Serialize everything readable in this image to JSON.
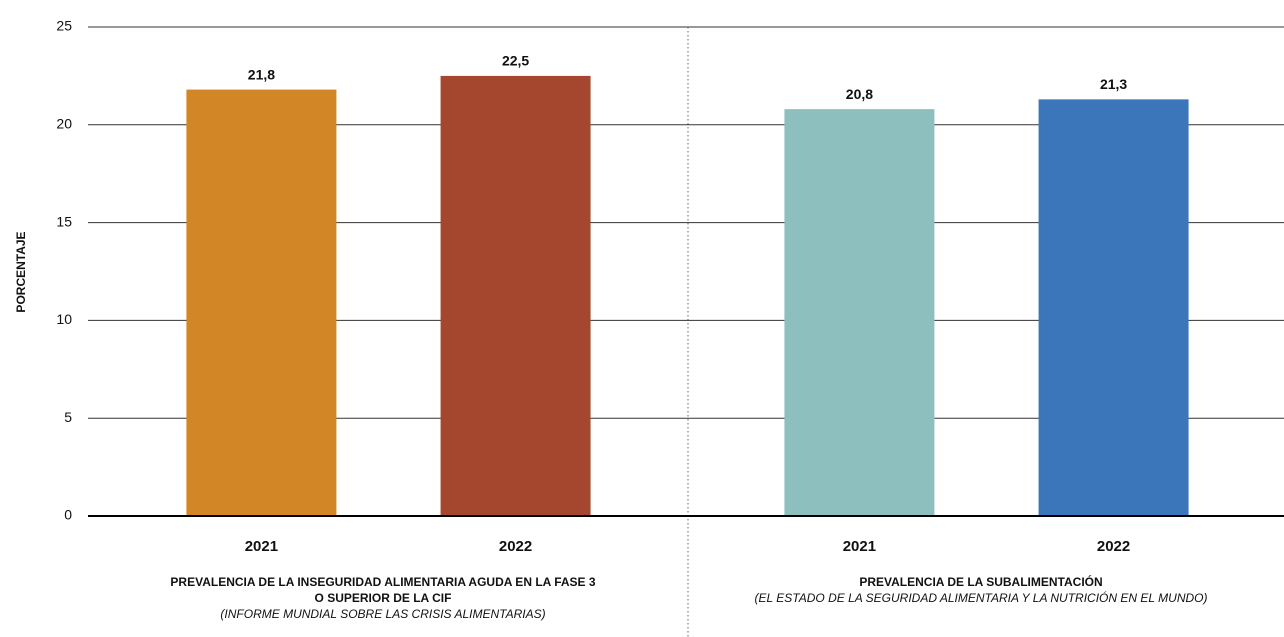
{
  "chart_data": {
    "type": "bar",
    "y_label": "PORCENTAJE",
    "ylim": [
      0,
      25
    ],
    "yticks": [
      0,
      5,
      10,
      15,
      20,
      25
    ],
    "grid": true,
    "groups": [
      {
        "title": [
          "PREVALENCIA DE LA INSEGURIDAD ALIMENTARIA AGUDA EN LA FASE 3",
          "O SUPERIOR DE LA CIF"
        ],
        "source": "(INFORME MUNDIAL SOBRE LAS CRISIS ALIMENTARIAS)",
        "categories": [
          "2021",
          "2022"
        ],
        "values": [
          21.8,
          22.5
        ],
        "value_labels": [
          "21,8",
          "22,5"
        ],
        "colors": [
          "#d38625",
          "#a5472e"
        ]
      },
      {
        "title": [
          "PREVALENCIA DE LA SUBALIMENTACIÓN"
        ],
        "source": "(EL ESTADO DE LA SEGURIDAD ALIMENTARIA Y LA NUTRICIÓN EN EL MUNDO)",
        "categories": [
          "2021",
          "2022"
        ],
        "values": [
          20.8,
          21.3
        ],
        "value_labels": [
          "20,8",
          "21,3"
        ],
        "colors": [
          "#8dbfbe",
          "#3b76ba"
        ]
      }
    ]
  }
}
